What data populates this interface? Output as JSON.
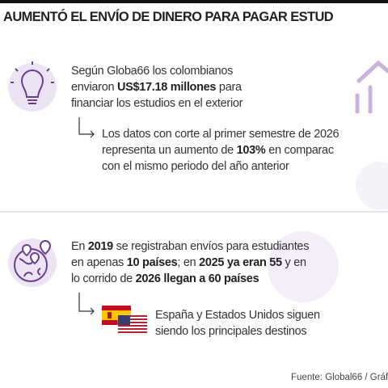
{
  "header": {
    "title": "AUMENTÓ EL ENVÍO DE DINERO PARA PAGAR ESTUD"
  },
  "block1": {
    "intro": [
      "Según Globa66 los colombianos",
      "enviaron ",
      "US$17.18 millones",
      " para",
      "financiar los estudios en el exterior"
    ],
    "detail": [
      "Los datos con corte al primer semestre de 2026",
      "representa un aumento de ",
      "103%",
      " en comparac",
      "con el mismo periodo del año anterior"
    ]
  },
  "block2": {
    "intro": [
      "En ",
      "2019",
      " se registraban envíos para estudiantes",
      "en apenas ",
      "10 países",
      "; en ",
      "2025 ya eran 55",
      " y en",
      "lo corrido de ",
      "2026 llegan a 60 países"
    ],
    "detail": [
      "España y Estados Unidos siguen",
      "siendo los principales destinos"
    ]
  },
  "footer": {
    "source": "Fuente: Global66 / Gráf"
  }
}
